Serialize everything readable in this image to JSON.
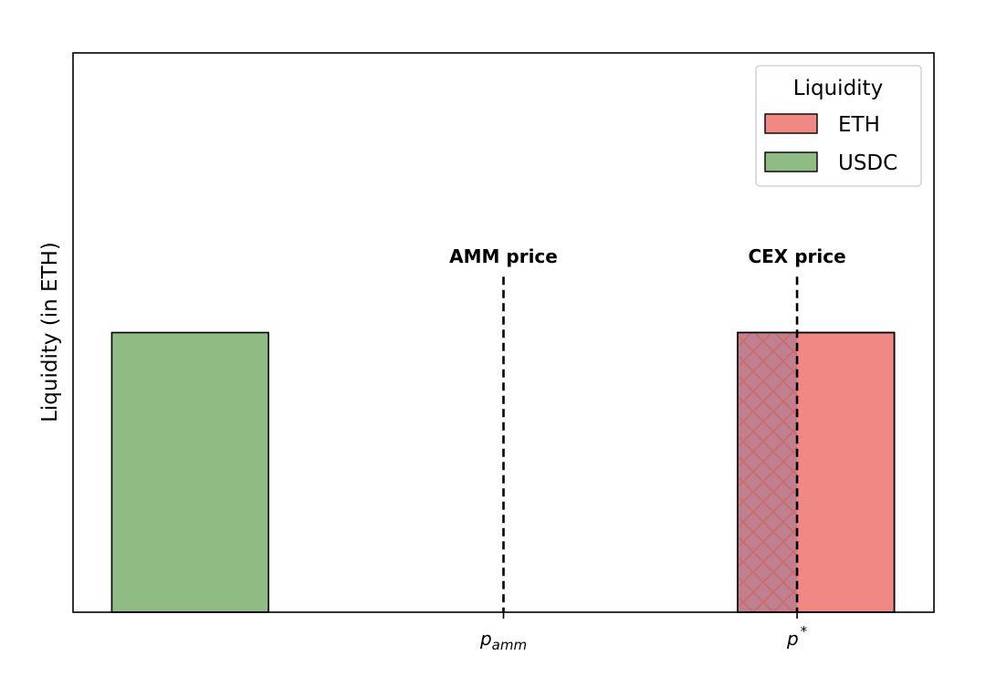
{
  "chart_data": {
    "type": "bar",
    "title": "",
    "xlabel": "",
    "ylabel": "Liquidity (in ETH)",
    "xlim": [
      0,
      1
    ],
    "ylim": [
      0,
      2
    ],
    "grid": false,
    "legend": {
      "title": "Liquidity",
      "placement": "top-right",
      "entries": [
        {
          "label": "ETH",
          "color": "#f08984"
        },
        {
          "label": "USDC",
          "color": "#8fbc83"
        }
      ]
    },
    "bars": [
      {
        "series": "USDC",
        "x_start": 0.045,
        "x_end": 0.227,
        "value": 1.0,
        "color": "#8fbc83"
      },
      {
        "series": "ETH",
        "x_start": 0.772,
        "x_end": 0.954,
        "value": 1.0,
        "color": "#f08984"
      }
    ],
    "hatched_region": {
      "x_start": 0.772,
      "x_end": 0.841,
      "value": 1.0,
      "color": "#c0808f",
      "hatch": "crosshatch"
    },
    "reference_lines": [
      {
        "x": 0.5,
        "label": "AMM price",
        "tick_base": "p",
        "tick_sub": "amm",
        "tick_sup": ""
      },
      {
        "x": 0.841,
        "label": "CEX price",
        "tick_base": "p",
        "tick_sub": "",
        "tick_sup": "*"
      }
    ],
    "reference_line_top": 1.2
  }
}
